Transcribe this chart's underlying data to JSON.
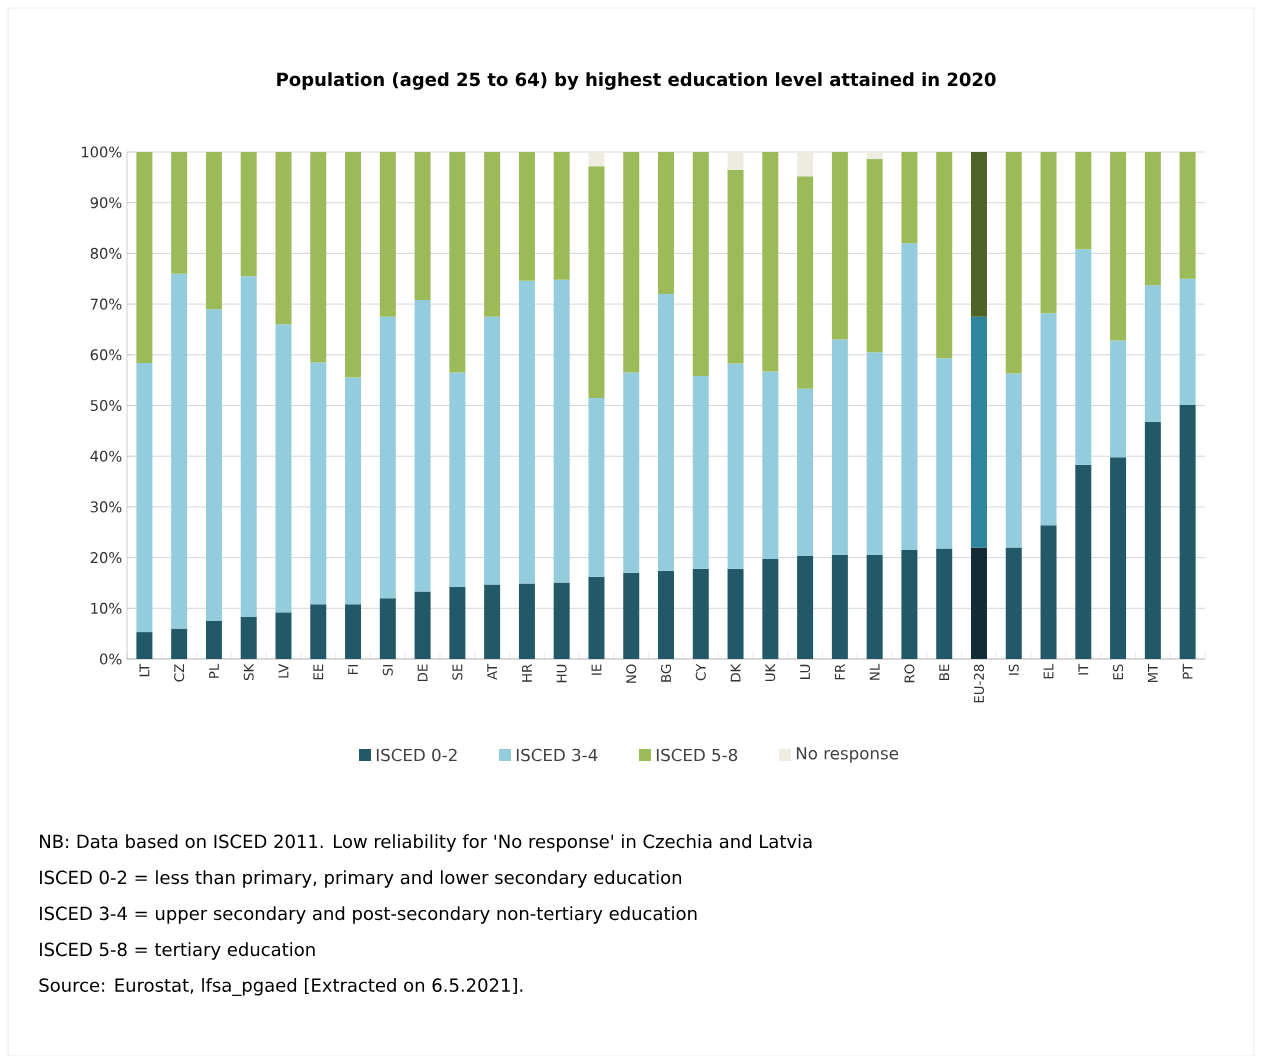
{
  "chart_data": {
    "type": "bar",
    "stacked": true,
    "title": "Population (aged 25 to 64) by highest education level attained in 2020",
    "categories": [
      "LT",
      "CZ",
      "PL",
      "SK",
      "LV",
      "EE",
      "FI",
      "SI",
      "DE",
      "SE",
      "AT",
      "HR",
      "HU",
      "IE",
      "NO",
      "BG",
      "CY",
      "DK",
      "UK",
      "LU",
      "FR",
      "NL",
      "RO",
      "BE",
      "EU-28",
      "IS",
      "EL",
      "IT",
      "ES",
      "MT",
      "PT"
    ],
    "series": [
      {
        "name": "ISCED 0-2",
        "color": "#215968",
        "colors": [
          "#215968",
          "#215968",
          "#215968",
          "#215968",
          "#215968",
          "#215968",
          "#215968",
          "#215968",
          "#215968",
          "#215968",
          "#215968",
          "#215968",
          "#215968",
          "#215968",
          "#215968",
          "#215968",
          "#215968",
          "#215968",
          "#215968",
          "#215968",
          "#215968",
          "#215968",
          "#215968",
          "#215968",
          "#132b33",
          "#215968",
          "#215968",
          "#215968",
          "#215968",
          "#215968",
          "#215968"
        ],
        "values": [
          5.3,
          6,
          7.5,
          8.3,
          9.2,
          10.8,
          10.8,
          12,
          13.3,
          14.2,
          14.7,
          14.9,
          15.1,
          16.2,
          17,
          17.4,
          17.8,
          17.8,
          19.7,
          20.3,
          20.5,
          20.5,
          21.5,
          21.8,
          22,
          22,
          26.4,
          38.3,
          39.8,
          46.8,
          50.1
        ]
      },
      {
        "name": "ISCED 3-4",
        "color": "#93cddd",
        "colors": [
          "#93cddd",
          "#93cddd",
          "#93cddd",
          "#93cddd",
          "#93cddd",
          "#93cddd",
          "#93cddd",
          "#93cddd",
          "#93cddd",
          "#93cddd",
          "#93cddd",
          "#93cddd",
          "#93cddd",
          "#93cddd",
          "#93cddd",
          "#93cddd",
          "#93cddd",
          "#93cddd",
          "#93cddd",
          "#93cddd",
          "#93cddd",
          "#93cddd",
          "#93cddd",
          "#93cddd",
          "#2e869e",
          "#93cddd",
          "#93cddd",
          "#93cddd",
          "#93cddd",
          "#93cddd",
          "#93cddd"
        ],
        "values": [
          53.1,
          70,
          61.5,
          67.2,
          56.8,
          47.7,
          44.7,
          55.5,
          57.5,
          42.3,
          52.8,
          59.7,
          59.7,
          35.3,
          39.5,
          54.6,
          38,
          40.5,
          37,
          33,
          42.5,
          40,
          60.5,
          37.5,
          45.5,
          34.3,
          41.8,
          42.5,
          23,
          26.9,
          24.9
        ]
      },
      {
        "name": "ISCED 5-8",
        "color": "#9bbb59",
        "colors": [
          "#9bbb59",
          "#9bbb59",
          "#9bbb59",
          "#9bbb59",
          "#9bbb59",
          "#9bbb59",
          "#9bbb59",
          "#9bbb59",
          "#9bbb59",
          "#9bbb59",
          "#9bbb59",
          "#9bbb59",
          "#9bbb59",
          "#9bbb59",
          "#9bbb59",
          "#9bbb59",
          "#9bbb59",
          "#9bbb59",
          "#9bbb59",
          "#9bbb59",
          "#9bbb59",
          "#9bbb59",
          "#9bbb59",
          "#9bbb59",
          "#4f6228",
          "#9bbb59",
          "#9bbb59",
          "#9bbb59",
          "#9bbb59",
          "#9bbb59",
          "#9bbb59"
        ],
        "values": [
          41.6,
          24,
          31,
          24.5,
          34,
          41.5,
          44.5,
          32.5,
          29.2,
          43.5,
          32.5,
          25.4,
          25.2,
          45.7,
          43.5,
          28,
          44.2,
          38.2,
          43.3,
          41.9,
          37,
          38.1,
          18,
          40.7,
          32.5,
          43.7,
          31.8,
          19.2,
          37.2,
          26.3,
          25
        ]
      },
      {
        "name": "No response",
        "color": "#eeece1",
        "values": [
          0,
          0,
          0,
          0,
          0,
          0,
          0,
          0,
          0,
          0,
          0,
          0,
          0,
          2.8,
          0,
          0,
          0,
          3.5,
          0,
          4.8,
          0,
          1.4,
          0,
          0,
          0,
          0,
          0,
          0,
          0,
          0,
          0
        ]
      }
    ],
    "ylim": [
      0,
      100
    ],
    "yticks": [
      {
        "value": 0,
        "label": "0%"
      },
      {
        "value": 10,
        "label": "10%"
      },
      {
        "value": 20,
        "label": "20%"
      },
      {
        "value": 30,
        "label": "30%"
      },
      {
        "value": 40,
        "label": "40%"
      },
      {
        "value": 50,
        "label": "50%"
      },
      {
        "value": 60,
        "label": "60%"
      },
      {
        "value": 70,
        "label": "70%"
      },
      {
        "value": 80,
        "label": "80%"
      },
      {
        "value": 90,
        "label": "90%"
      },
      {
        "value": 100,
        "label": "100%"
      }
    ],
    "grid": "y",
    "legend": "bottom",
    "annotations": [
      "NB: Data based on ISCED 2011. Low reliability for 'No response' in Czechia and Latvia",
      "ISCED 0-2 = less than primary, primary and lower secondary education",
      "ISCED 3-4 = upper secondary and post-secondary non-tertiary education",
      "ISCED 5-8 = tertiary education",
      "Source: Eurostat, lfsa_pgaed [Extracted on 6.5.2021]."
    ]
  }
}
